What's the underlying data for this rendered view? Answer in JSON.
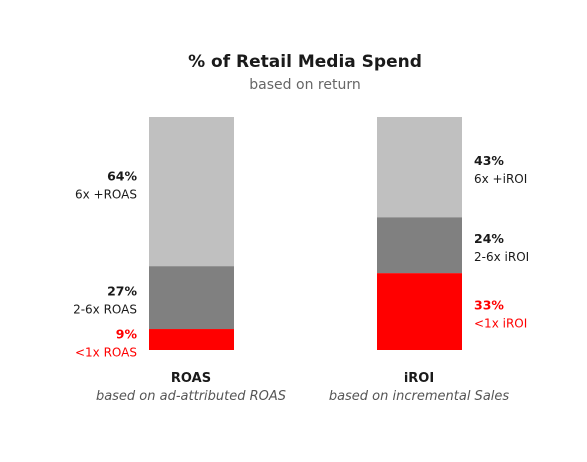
{
  "chart_data": {
    "type": "bar",
    "stacked": true,
    "normalized": true,
    "title": "% of Retail Media Spend",
    "subtitle": "based on return",
    "categories": [
      {
        "name": "ROAS",
        "sublabel": "based on ad-attributed ROAS",
        "segments": [
          {
            "value": 9,
            "pct_label": "9%",
            "label": "<1x ROAS",
            "color": "#ff0000",
            "text_color": "#ff0000"
          },
          {
            "value": 27,
            "pct_label": "27%",
            "label": "2-6x ROAS",
            "color": "#808080",
            "text_color": "#1a1a1a"
          },
          {
            "value": 64,
            "pct_label": "64%",
            "label": "6x +ROAS",
            "color": "#c0c0c0",
            "text_color": "#1a1a1a"
          }
        ]
      },
      {
        "name": "iROI",
        "sublabel": "based on incremental Sales",
        "segments": [
          {
            "value": 33,
            "pct_label": "33%",
            "label": "<1x iROI",
            "color": "#ff0000",
            "text_color": "#ff0000"
          },
          {
            "value": 24,
            "pct_label": "24%",
            "label": "2-6x iROI",
            "color": "#808080",
            "text_color": "#1a1a1a"
          },
          {
            "value": 43,
            "pct_label": "43%",
            "label": "6x +iROI",
            "color": "#c0c0c0",
            "text_color": "#1a1a1a"
          }
        ]
      }
    ]
  }
}
